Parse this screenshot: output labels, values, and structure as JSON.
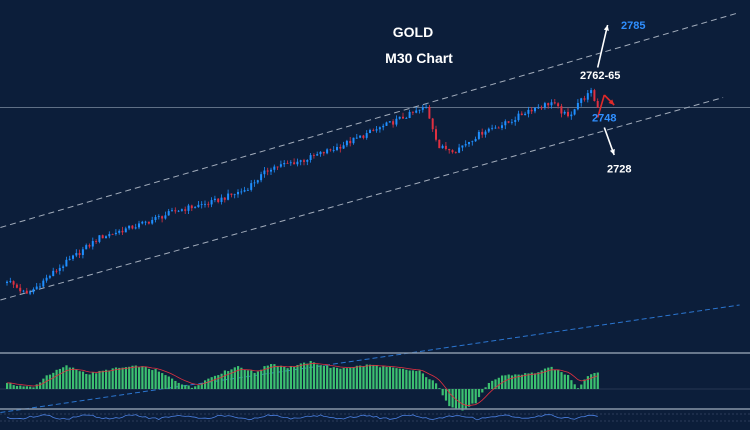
{
  "colors": {
    "background": "#0c1e3a",
    "bull_candle": "#1f8fff",
    "bear_candle": "#e03040",
    "channel_line": "#c8d0dc",
    "support_line": "#2f7fe0",
    "osc_hist": "#3cc070",
    "osc_signal": "#e03040",
    "level_white": "#ffffff",
    "level_blue": "#2f8fff",
    "arrow_red": "#e02a2a"
  },
  "chart_data": [
    {
      "type": "candlestick",
      "title": "GOLD",
      "subtitle": "M30 Chart",
      "symbol": "GOLD",
      "timeframe": "M30",
      "grid": false,
      "legend": "none",
      "price_range": [
        2655,
        2795
      ],
      "current_price": 2752,
      "n_bars": 180,
      "anchor_closes": [
        {
          "bar": 0,
          "close": 2683
        },
        {
          "bar": 6,
          "close": 2677
        },
        {
          "bar": 15,
          "close": 2687
        },
        {
          "bar": 28,
          "close": 2700
        },
        {
          "bar": 40,
          "close": 2705
        },
        {
          "bar": 52,
          "close": 2711
        },
        {
          "bar": 62,
          "close": 2714
        },
        {
          "bar": 72,
          "close": 2719
        },
        {
          "bar": 80,
          "close": 2728
        },
        {
          "bar": 90,
          "close": 2731
        },
        {
          "bar": 100,
          "close": 2736
        },
        {
          "bar": 110,
          "close": 2742
        },
        {
          "bar": 120,
          "close": 2748
        },
        {
          "bar": 127,
          "close": 2752
        },
        {
          "bar": 131,
          "close": 2736
        },
        {
          "bar": 136,
          "close": 2735
        },
        {
          "bar": 145,
          "close": 2743
        },
        {
          "bar": 152,
          "close": 2746
        },
        {
          "bar": 158,
          "close": 2751
        },
        {
          "bar": 165,
          "close": 2754
        },
        {
          "bar": 170,
          "close": 2748
        },
        {
          "bar": 173,
          "close": 2754
        },
        {
          "bar": 177,
          "close": 2758
        },
        {
          "bar": 179,
          "close": 2752
        }
      ],
      "trend_lines": [
        {
          "name": "channel-upper",
          "style": "dashed",
          "start": {
            "bar": -2,
            "price": 2704
          },
          "end": {
            "bar": 222,
            "price": 2790
          }
        },
        {
          "name": "channel-lower",
          "style": "dashed",
          "start": {
            "bar": -2,
            "price": 2675
          },
          "end": {
            "bar": 217,
            "price": 2756
          }
        },
        {
          "name": "long-support",
          "style": "dashed",
          "start": {
            "bar": -2,
            "price": 2630
          },
          "end": {
            "bar": 222,
            "price": 2673
          }
        }
      ],
      "horizontal_lines": [
        {
          "name": "price-line",
          "price": 2752
        }
      ],
      "levels": [
        {
          "name": "level-2785",
          "text": "2785",
          "price": 2785,
          "color": "blue"
        },
        {
          "name": "level-2762-65",
          "text": "2762-65",
          "price": 2765,
          "color": "white"
        },
        {
          "name": "level-2748",
          "text": "2748",
          "price": 2748,
          "color": "blue"
        },
        {
          "name": "level-2728",
          "text": "2728",
          "price": 2728,
          "color": "white"
        }
      ],
      "annotations": [
        {
          "name": "arrow-up-to-2785",
          "kind": "arrow",
          "color": "white",
          "from": {
            "bar": 179,
            "price": 2768
          },
          "to": {
            "bar": 182,
            "price": 2785
          }
        },
        {
          "name": "arrow-red-up",
          "kind": "arrow",
          "color": "red",
          "from": {
            "bar": 179,
            "price": 2748
          },
          "to": {
            "bar": 181,
            "price": 2757
          }
        },
        {
          "name": "arrow-red-down",
          "kind": "arrow",
          "color": "red",
          "from": {
            "bar": 181,
            "price": 2757
          },
          "to": {
            "bar": 184,
            "price": 2753
          }
        },
        {
          "name": "arrow-down-to-2728",
          "kind": "arrow",
          "color": "white",
          "from": {
            "bar": 181,
            "price": 2744
          },
          "to": {
            "bar": 184,
            "price": 2733
          }
        }
      ]
    },
    {
      "type": "histogram",
      "indicator": "oscillator",
      "n_bars": 180,
      "anchor_values": [
        {
          "bar": 0,
          "value": 0.2
        },
        {
          "bar": 8,
          "value": 0.05
        },
        {
          "bar": 12,
          "value": 0.5
        },
        {
          "bar": 18,
          "value": 0.85
        },
        {
          "bar": 25,
          "value": 0.55
        },
        {
          "bar": 32,
          "value": 0.75
        },
        {
          "bar": 40,
          "value": 0.85
        },
        {
          "bar": 45,
          "value": 0.7
        },
        {
          "bar": 52,
          "value": 0.25
        },
        {
          "bar": 56,
          "value": 0.05
        },
        {
          "bar": 62,
          "value": 0.45
        },
        {
          "bar": 70,
          "value": 0.85
        },
        {
          "bar": 75,
          "value": 0.6
        },
        {
          "bar": 80,
          "value": 0.95
        },
        {
          "bar": 85,
          "value": 0.8
        },
        {
          "bar": 92,
          "value": 1.0
        },
        {
          "bar": 100,
          "value": 0.75
        },
        {
          "bar": 110,
          "value": 0.9
        },
        {
          "bar": 118,
          "value": 0.75
        },
        {
          "bar": 125,
          "value": 0.65
        },
        {
          "bar": 130,
          "value": 0.2
        },
        {
          "bar": 134,
          "value": -0.6
        },
        {
          "bar": 138,
          "value": -0.8
        },
        {
          "bar": 142,
          "value": -0.5
        },
        {
          "bar": 146,
          "value": 0.2
        },
        {
          "bar": 150,
          "value": 0.5
        },
        {
          "bar": 156,
          "value": 0.55
        },
        {
          "bar": 160,
          "value": 0.6
        },
        {
          "bar": 165,
          "value": 0.8
        },
        {
          "bar": 170,
          "value": 0.5
        },
        {
          "bar": 173,
          "value": 0.05
        },
        {
          "bar": 176,
          "value": 0.5
        },
        {
          "bar": 179,
          "value": 0.65
        }
      ]
    },
    {
      "type": "line",
      "indicator": "oscillator-2",
      "n_bars": 180,
      "ylim": [
        -1,
        1
      ]
    }
  ]
}
